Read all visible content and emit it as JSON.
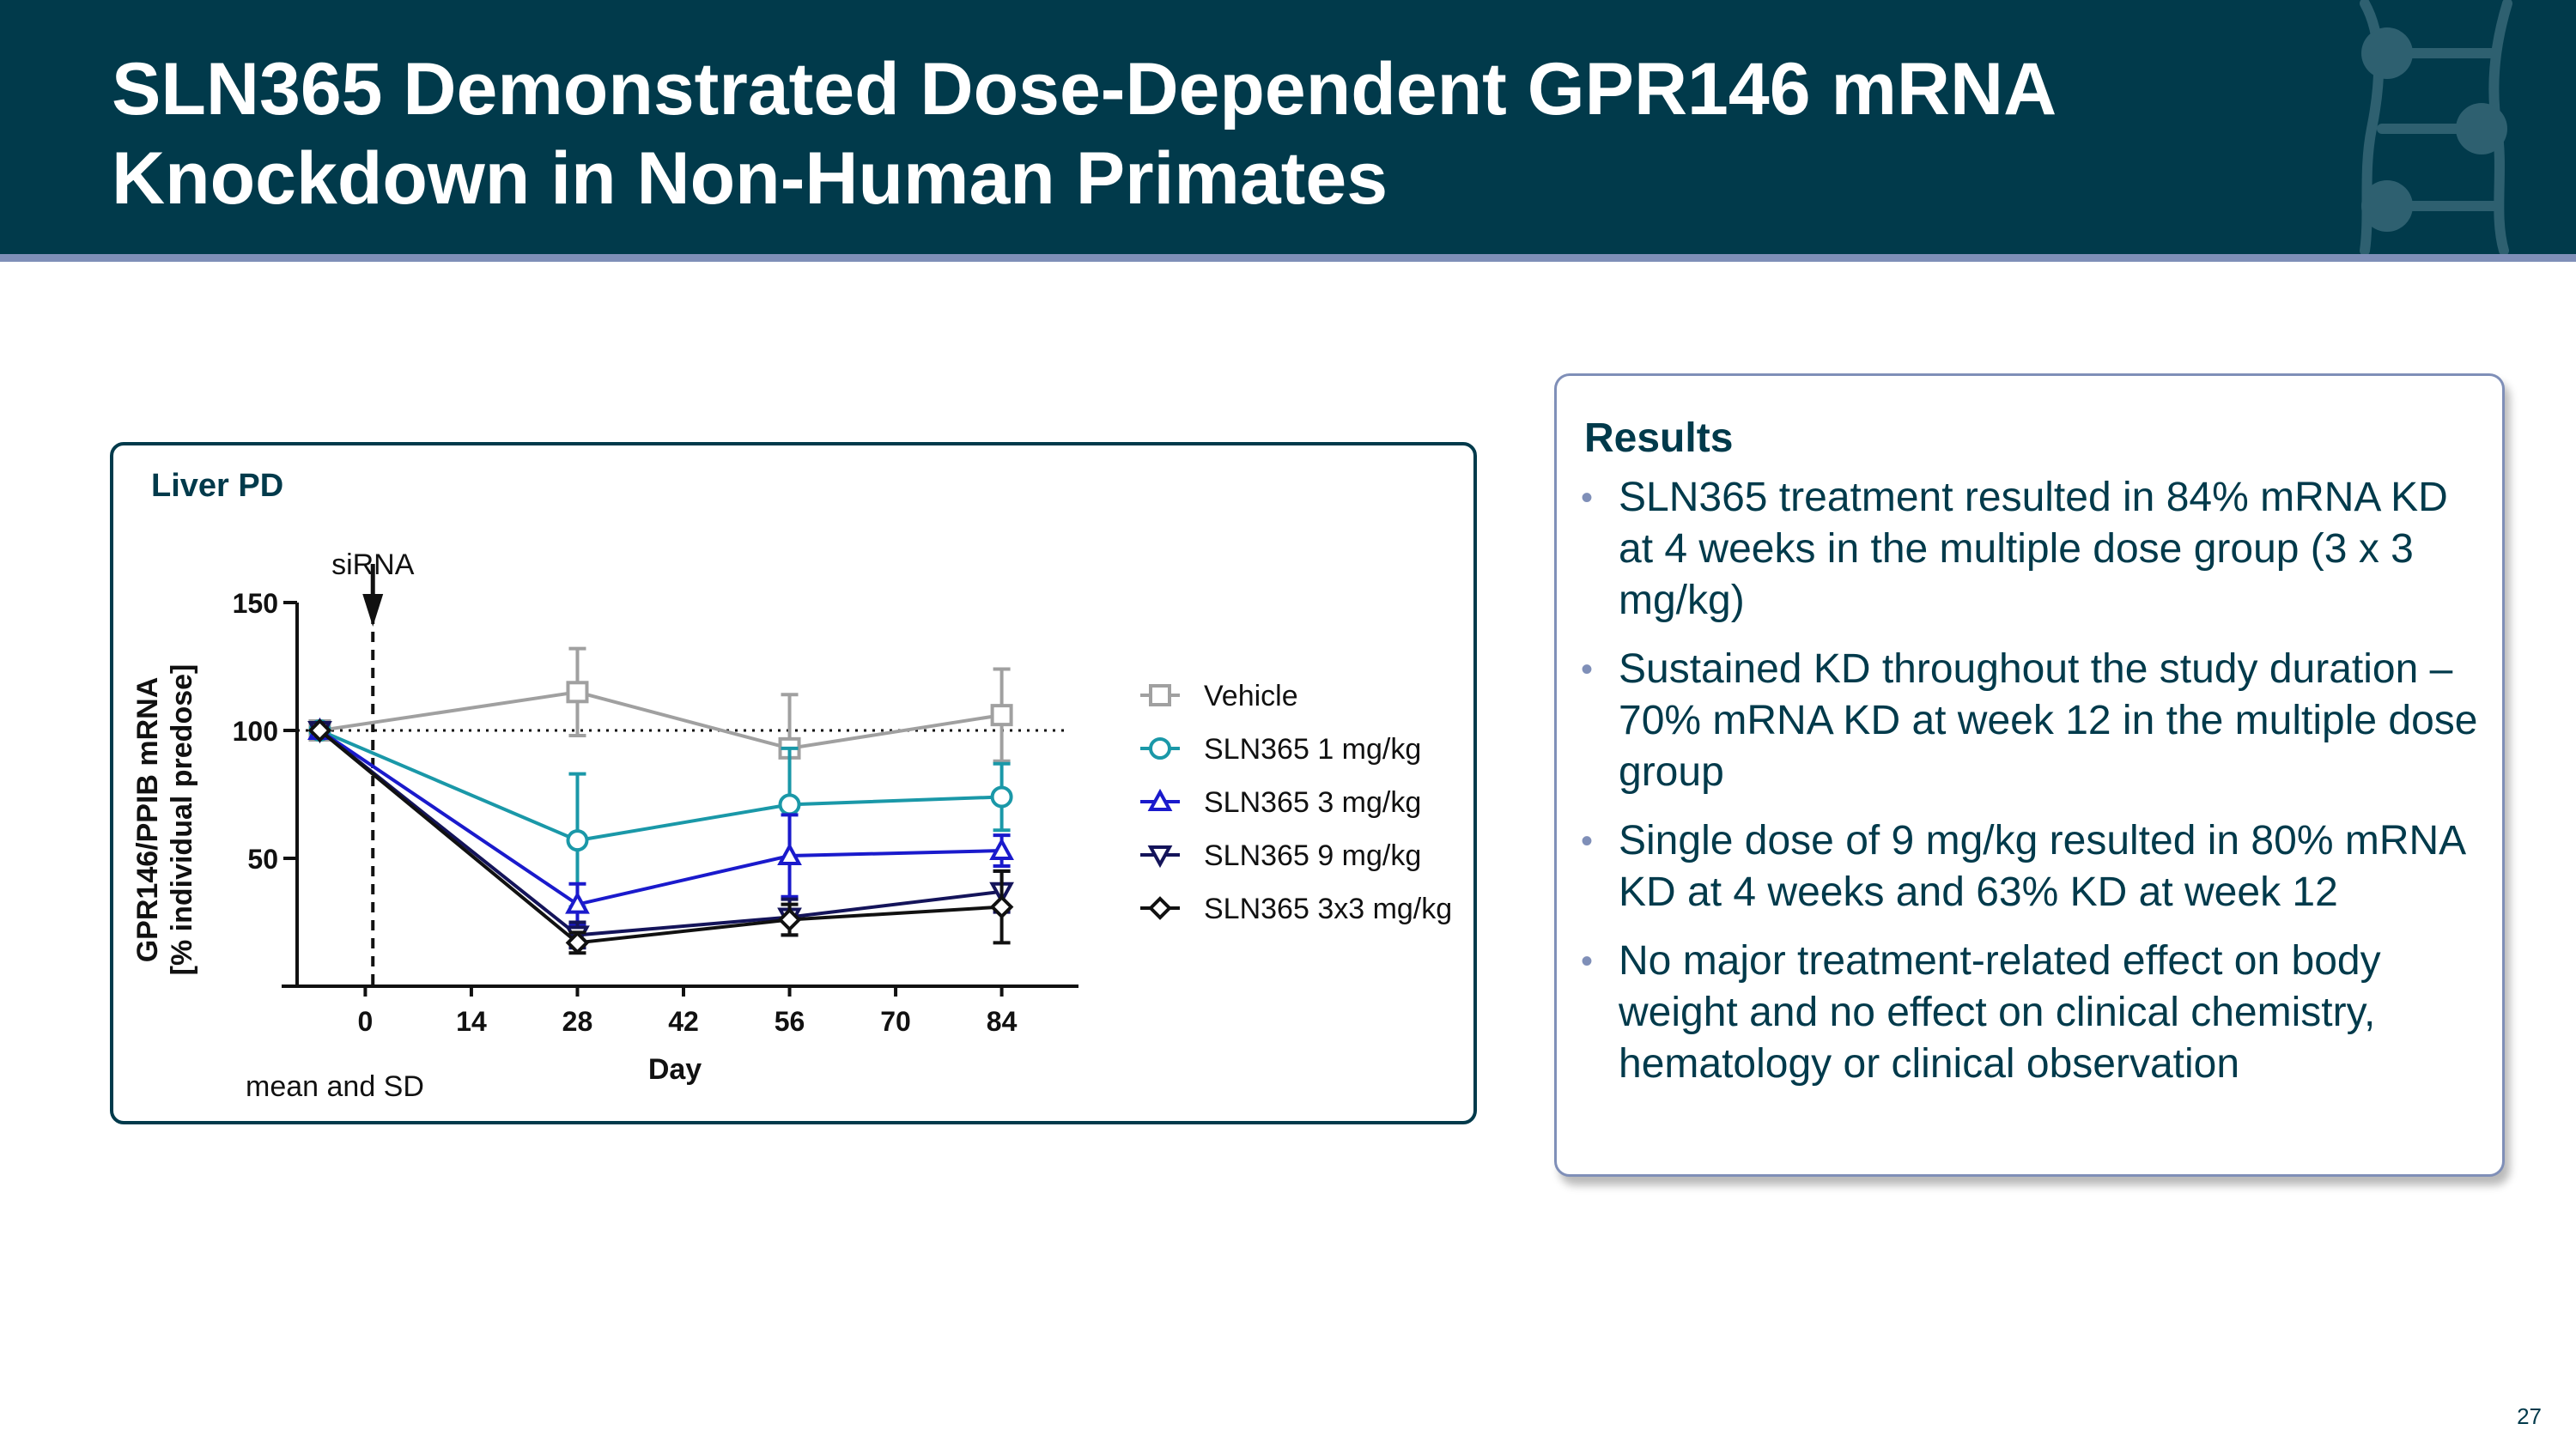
{
  "slide": {
    "title_line1": "SLN365 Demonstrated Dose-Dependent GPR146 mRNA",
    "title_line2": "Knockdown in Non-Human Primates",
    "page_number": "27",
    "colors": {
      "header": "#013a4b",
      "accent": "#7f8fb8"
    }
  },
  "results": {
    "title": "Results",
    "items": [
      "SLN365 treatment resulted in 84% mRNA KD at 4 weeks in the multiple dose group (3 x 3 mg/kg)",
      "Sustained KD throughout the study duration – 70% mRNA KD at week 12 in the multiple dose group",
      "Single dose of 9 mg/kg resulted in 80% mRNA KD at 4 weeks and 63% KD at week 12",
      "No major treatment-related effect on body weight and no effect on clinical chemistry, hematology or clinical observation"
    ]
  },
  "chart_data": {
    "type": "line",
    "title": "Liver PD",
    "xlabel": "Day",
    "ylabel_line1": "GPR146/PPIB mRNA",
    "ylabel_line2": "[% individual predose]",
    "xlim": [
      -9,
      93
    ],
    "ylim": [
      0,
      150
    ],
    "xticks": [
      0,
      14,
      28,
      42,
      56,
      70,
      84
    ],
    "yticks": [
      50,
      100,
      150
    ],
    "reference_line_y": 100,
    "annotation": {
      "label": "siRNA",
      "x": 1
    },
    "footnote": "mean and SD",
    "legend_position": "right",
    "series": [
      {
        "name": "Vehicle",
        "marker": "square",
        "color": "#a0a0a0",
        "x": [
          -6,
          28,
          56,
          84
        ],
        "y": [
          100,
          115,
          93,
          106
        ],
        "sd": [
          0,
          17,
          21,
          18
        ]
      },
      {
        "name": "SLN365 1 mg/kg",
        "marker": "circle",
        "color": "#1a98a8",
        "x": [
          -6,
          28,
          56,
          84
        ],
        "y": [
          100,
          57,
          71,
          74
        ],
        "sd": [
          0,
          26,
          22,
          13
        ]
      },
      {
        "name": "SLN365 3 mg/kg",
        "marker": "triangle-up",
        "color": "#1a1acc",
        "x": [
          -6,
          28,
          56,
          84
        ],
        "y": [
          100,
          32,
          51,
          53
        ],
        "sd": [
          0,
          8,
          16,
          6
        ]
      },
      {
        "name": "SLN365 9 mg/kg",
        "marker": "triangle-down",
        "color": "#14145a",
        "x": [
          -6,
          28,
          56,
          84
        ],
        "y": [
          100,
          20,
          27,
          37
        ],
        "sd": [
          0,
          5,
          7,
          8
        ]
      },
      {
        "name": "SLN365 3x3 mg/kg",
        "marker": "diamond",
        "color": "#111111",
        "x": [
          -6,
          28,
          56,
          84
        ],
        "y": [
          100,
          17,
          26,
          31
        ],
        "sd": [
          0,
          4,
          6,
          14
        ]
      }
    ]
  }
}
